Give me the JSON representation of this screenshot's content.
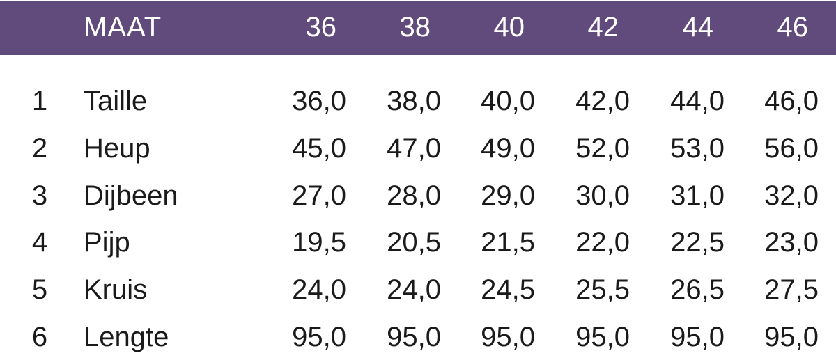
{
  "header": {
    "label": "MAAT",
    "sizes": [
      "36",
      "38",
      "40",
      "42",
      "44",
      "46"
    ]
  },
  "header_color": "#614a7c",
  "rows": [
    {
      "num": "1",
      "label": "Taille",
      "values": [
        "36,0",
        "38,0",
        "40,0",
        "42,0",
        "44,0",
        "46,0"
      ]
    },
    {
      "num": "2",
      "label": "Heup",
      "values": [
        "45,0",
        "47,0",
        "49,0",
        "52,0",
        "53,0",
        "56,0"
      ]
    },
    {
      "num": "3",
      "label": "Dijbeen",
      "values": [
        "27,0",
        "28,0",
        "29,0",
        "30,0",
        "31,0",
        "32,0"
      ]
    },
    {
      "num": "4",
      "label": "Pijp",
      "values": [
        "19,5",
        "20,5",
        "21,5",
        "22,0",
        "22,5",
        "23,0"
      ]
    },
    {
      "num": "5",
      "label": "Kruis",
      "values": [
        "24,0",
        "24,0",
        "24,5",
        "25,5",
        "26,5",
        "27,5"
      ]
    },
    {
      "num": "6",
      "label": "Lengte",
      "values": [
        "95,0",
        "95,0",
        "95,0",
        "95,0",
        "95,0",
        "95,0"
      ]
    }
  ]
}
